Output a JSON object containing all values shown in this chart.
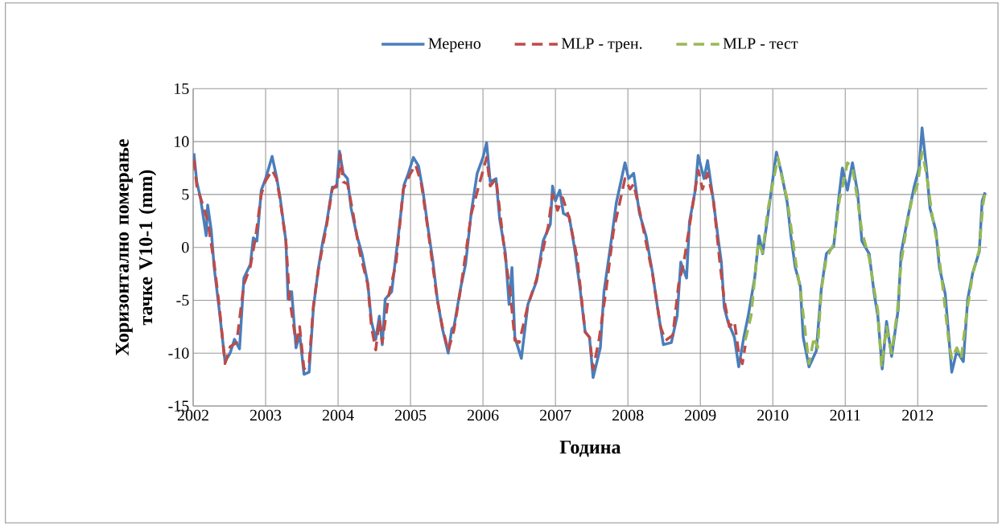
{
  "chart_data": {
    "type": "line",
    "xlabel": "Година",
    "ylabel": "Хоризонтално померање тачке V10-1 (mm)",
    "xlim": [
      2002,
      2012.96
    ],
    "ylim": [
      -15,
      15
    ],
    "xticks": [
      2002,
      2003,
      2004,
      2005,
      2006,
      2007,
      2008,
      2009,
      2010,
      2011,
      2012
    ],
    "yticks": [
      -15,
      -10,
      -5,
      0,
      5,
      10,
      15
    ],
    "grid": true,
    "legend": "top",
    "series": [
      {
        "name": "Мерено",
        "color": "#4a7ebb",
        "line_style": "solid",
        "x": [
          2002.01,
          2002.05,
          2002.1,
          2002.18,
          2002.2,
          2002.25,
          2002.29,
          2002.36,
          2002.44,
          2002.51,
          2002.57,
          2002.64,
          2002.7,
          2002.79,
          2002.83,
          2002.88,
          2002.94,
          2003.0,
          2003.09,
          2003.15,
          2003.2,
          2003.28,
          2003.31,
          2003.36,
          2003.42,
          2003.47,
          2003.53,
          2003.6,
          2003.66,
          2003.73,
          2003.79,
          2003.84,
          2003.92,
          2003.98,
          2004.02,
          2004.07,
          2004.13,
          2004.18,
          2004.26,
          2004.33,
          2004.41,
          2004.46,
          2004.52,
          2004.57,
          2004.61,
          2004.65,
          2004.74,
          2004.78,
          2004.85,
          2004.91,
          2004.97,
          2005.04,
          2005.11,
          2005.17,
          2005.24,
          2005.31,
          2005.37,
          2005.44,
          2005.52,
          2005.57,
          2005.6,
          2005.69,
          2005.76,
          2005.84,
          2005.92,
          2006.0,
          2006.05,
          2006.1,
          2006.18,
          2006.23,
          2006.31,
          2006.36,
          2006.4,
          2006.44,
          2006.53,
          2006.62,
          2006.74,
          2006.83,
          2006.93,
          2006.96,
          2007.0,
          2007.06,
          2007.11,
          2007.19,
          2007.26,
          2007.34,
          2007.41,
          2007.47,
          2007.52,
          2007.62,
          2007.67,
          2007.77,
          2007.84,
          2007.96,
          2008.01,
          2008.08,
          2008.16,
          2008.25,
          2008.34,
          2008.42,
          2008.49,
          2008.6,
          2008.68,
          2008.73,
          2008.81,
          2008.85,
          2008.93,
          2008.97,
          2009.05,
          2009.1,
          2009.18,
          2009.25,
          2009.29,
          2009.33,
          2009.38,
          2009.47,
          2009.53,
          2009.6,
          2009.66,
          2009.75,
          2009.81,
          2009.86,
          2009.97,
          2010.05,
          2010.12,
          2010.2,
          2010.25,
          2010.31,
          2010.38,
          2010.42,
          2010.5,
          2010.6,
          2010.67,
          2010.74,
          2010.84,
          2010.92,
          2010.96,
          2011.03,
          2011.1,
          2011.17,
          2011.23,
          2011.33,
          2011.4,
          2011.45,
          2011.51,
          2011.57,
          2011.64,
          2011.73,
          2011.77,
          2011.86,
          2011.95,
          2012.02,
          2012.06,
          2012.12,
          2012.17,
          2012.25,
          2012.3,
          2012.38,
          2012.43,
          2012.47,
          2012.54,
          2012.63,
          2012.69,
          2012.76,
          2012.85,
          2012.89,
          2012.93
        ],
        "values": [
          8.9,
          6.2,
          4.7,
          1.1,
          4.0,
          1.6,
          -1.9,
          -5.9,
          -10.8,
          -10.0,
          -8.7,
          -9.6,
          -2.9,
          -1.6,
          0.9,
          0.6,
          5.4,
          6.5,
          8.6,
          6.7,
          4.7,
          0.6,
          -4.9,
          -4.2,
          -9.5,
          -8.2,
          -12.0,
          -11.8,
          -5.7,
          -1.9,
          0.6,
          2.2,
          5.7,
          5.7,
          9.1,
          7.0,
          6.5,
          3.7,
          1.1,
          -0.6,
          -3.4,
          -7.0,
          -8.7,
          -6.5,
          -9.2,
          -4.9,
          -4.2,
          -1.9,
          2.2,
          5.9,
          7.0,
          8.5,
          7.7,
          5.4,
          1.9,
          -1.4,
          -4.9,
          -7.7,
          -10.0,
          -7.7,
          -7.5,
          -3.9,
          -1.6,
          3.4,
          7.0,
          8.5,
          9.9,
          6.2,
          6.5,
          2.7,
          -0.6,
          -5.4,
          -1.9,
          -8.5,
          -10.5,
          -5.4,
          -3.2,
          0.6,
          2.2,
          5.8,
          4.4,
          5.4,
          3.2,
          2.9,
          0.1,
          -3.9,
          -8.0,
          -8.5,
          -12.3,
          -9.5,
          -4.2,
          0.6,
          4.2,
          8.0,
          6.5,
          7.0,
          3.2,
          1.1,
          -2.4,
          -6.2,
          -9.2,
          -9.0,
          -6.5,
          -1.4,
          -2.9,
          2.4,
          5.4,
          8.7,
          6.5,
          8.2,
          4.4,
          0.6,
          -1.4,
          -5.7,
          -7.0,
          -8.5,
          -11.3,
          -8.5,
          -6.5,
          -2.9,
          1.1,
          -0.6,
          4.9,
          9.0,
          7.0,
          4.2,
          1.1,
          -1.9,
          -3.7,
          -8.5,
          -11.3,
          -9.8,
          -3.9,
          -0.6,
          0.1,
          5.2,
          7.5,
          5.4,
          8.0,
          5.2,
          0.6,
          -0.6,
          -4.4,
          -6.5,
          -11.5,
          -7.0,
          -10.3,
          -5.9,
          -0.6,
          2.7,
          5.7,
          7.5,
          11.3,
          7.5,
          3.7,
          1.6,
          -1.9,
          -4.4,
          -8.5,
          -11.8,
          -9.8,
          -10.8,
          -4.9,
          -2.4,
          -0.4,
          4.4,
          5.2
        ]
      },
      {
        "name": "MLP - трен.",
        "color": "#be4b48",
        "line_style": "dashed",
        "x": [
          2002.01,
          2002.05,
          2002.12,
          2002.2,
          2002.29,
          2002.36,
          2002.44,
          2002.51,
          2002.6,
          2002.7,
          2002.79,
          2002.86,
          2002.94,
          2003.0,
          2003.09,
          2003.15,
          2003.2,
          2003.28,
          2003.33,
          2003.42,
          2003.47,
          2003.53,
          2003.6,
          2003.66,
          2003.73,
          2003.84,
          2003.92,
          2004.0,
          2004.03,
          2004.07,
          2004.13,
          2004.2,
          2004.3,
          2004.41,
          2004.46,
          2004.52,
          2004.57,
          2004.61,
          2004.7,
          2004.8,
          2004.9,
          2005.0,
          2005.07,
          2005.15,
          2005.24,
          2005.37,
          2005.44,
          2005.52,
          2005.6,
          2005.69,
          2005.84,
          2005.95,
          2006.05,
          2006.1,
          2006.18,
          2006.3,
          2006.38,
          2006.44,
          2006.5,
          2006.62,
          2006.74,
          2006.9,
          2006.96,
          2007.03,
          2007.1,
          2007.19,
          2007.3,
          2007.41,
          2007.47,
          2007.52,
          2007.6,
          2007.7,
          2007.8,
          2007.96,
          2008.03,
          2008.08,
          2008.16,
          2008.34,
          2008.45,
          2008.52,
          2008.62,
          2008.7,
          2008.77,
          2008.85,
          2008.97,
          2009.03,
          2009.1,
          2009.18,
          2009.27,
          2009.33,
          2009.4,
          2009.47,
          2009.53,
          2009.58,
          2009.62
        ],
        "values": [
          8.3,
          5.8,
          4.3,
          2.5,
          -1.5,
          -5.5,
          -11.0,
          -9.4,
          -9.0,
          -3.5,
          -1.8,
          0.9,
          5.0,
          6.3,
          7.3,
          6.5,
          4.5,
          0.6,
          -4.8,
          -9.0,
          -7.5,
          -11.5,
          -11.0,
          -5.5,
          -2.0,
          2.0,
          5.5,
          6.0,
          8.8,
          6.2,
          6.0,
          3.5,
          -0.5,
          -3.5,
          -7.5,
          -9.7,
          -6.8,
          -9.0,
          -4.5,
          -1.5,
          5.5,
          7.0,
          7.8,
          6.0,
          1.7,
          -5.0,
          -7.5,
          -9.8,
          -7.8,
          -4.0,
          3.2,
          6.0,
          8.5,
          5.8,
          6.5,
          -0.5,
          -4.5,
          -8.8,
          -9.0,
          -5.5,
          -3.0,
          2.0,
          5.0,
          3.5,
          4.7,
          2.8,
          -1.0,
          -8.0,
          -8.5,
          -11.5,
          -8.8,
          -4.0,
          1.5,
          6.5,
          5.5,
          6.0,
          3.5,
          -2.5,
          -7.5,
          -8.8,
          -8.3,
          -3.5,
          -1.5,
          2.0,
          7.3,
          5.5,
          7.0,
          4.5,
          -1.5,
          -5.0,
          -7.5,
          -7.0,
          -10.0,
          -11.0,
          -9.3
        ]
      },
      {
        "name": "MLP - тест",
        "color": "#98b954",
        "line_style": "dashed",
        "x": [
          2009.62,
          2009.7,
          2009.75,
          2009.8,
          2009.86,
          2009.93,
          2010.0,
          2010.07,
          2010.12,
          2010.2,
          2010.27,
          2010.33,
          2010.38,
          2010.44,
          2010.5,
          2010.57,
          2010.62,
          2010.67,
          2010.74,
          2010.84,
          2010.92,
          2010.97,
          2011.03,
          2011.1,
          2011.17,
          2011.23,
          2011.33,
          2011.4,
          2011.45,
          2011.5,
          2011.57,
          2011.64,
          2011.72,
          2011.77,
          2011.86,
          2011.92,
          2012.0,
          2012.06,
          2012.12,
          2012.2,
          2012.28,
          2012.35,
          2012.43,
          2012.47,
          2012.54,
          2012.6,
          2012.68,
          2012.76,
          2012.85,
          2012.9,
          2012.93
        ],
        "values": [
          -8.8,
          -6.5,
          -3.0,
          0.5,
          -0.5,
          3.5,
          6.0,
          8.5,
          6.8,
          4.5,
          1.0,
          -2.0,
          -4.0,
          -7.5,
          -11.0,
          -8.5,
          -9.5,
          -4.0,
          -1.0,
          0.3,
          4.5,
          6.0,
          8.0,
          7.5,
          4.5,
          1.5,
          -1.0,
          -4.0,
          -6.0,
          -11.3,
          -7.5,
          -10.0,
          -6.0,
          -1.5,
          2.5,
          4.5,
          6.0,
          9.0,
          7.0,
          3.0,
          0.0,
          -4.0,
          -9.0,
          -10.5,
          -9.5,
          -10.5,
          -6.0,
          -2.5,
          -0.2,
          4.0,
          5.2
        ]
      }
    ]
  }
}
